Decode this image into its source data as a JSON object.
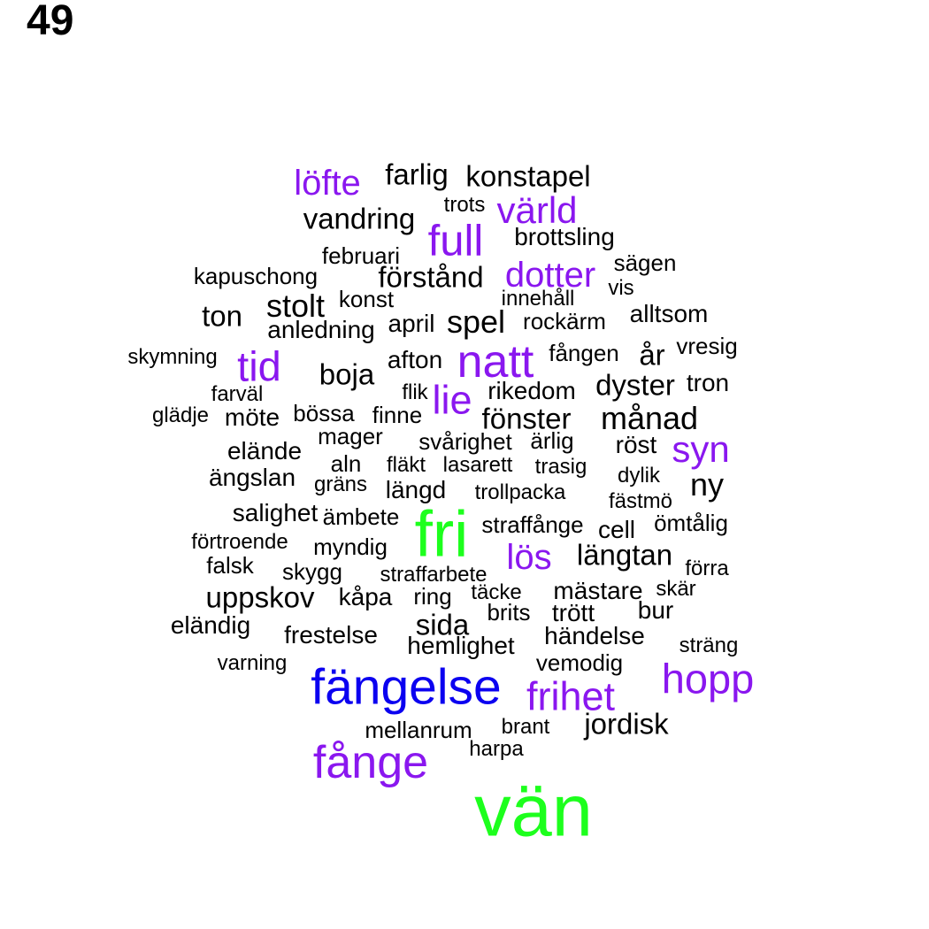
{
  "page_number": "49",
  "colors": {
    "default": "#000000",
    "purple": "#8a17ef",
    "blue": "#0b00f0",
    "green": "#1dff1d"
  },
  "words": [
    {
      "t": "löfte",
      "c": "purple"
    },
    {
      "t": "farlig",
      "c": "default"
    },
    {
      "t": "konstapel",
      "c": "default"
    },
    {
      "t": "trots",
      "c": "default"
    },
    {
      "t": "värld",
      "c": "purple"
    },
    {
      "t": "vandring",
      "c": "default"
    },
    {
      "t": "full",
      "c": "purple"
    },
    {
      "t": "brottsling",
      "c": "default"
    },
    {
      "t": "februari",
      "c": "default"
    },
    {
      "t": "sägen",
      "c": "default"
    },
    {
      "t": "kapuschong",
      "c": "default"
    },
    {
      "t": "förstånd",
      "c": "default"
    },
    {
      "t": "dotter",
      "c": "purple"
    },
    {
      "t": "vis",
      "c": "default"
    },
    {
      "t": "konst",
      "c": "default"
    },
    {
      "t": "innehåll",
      "c": "default"
    },
    {
      "t": "stolt",
      "c": "default"
    },
    {
      "t": "ton",
      "c": "default"
    },
    {
      "t": "alltsom",
      "c": "default"
    },
    {
      "t": "april",
      "c": "default"
    },
    {
      "t": "spel",
      "c": "default"
    },
    {
      "t": "rockärm",
      "c": "default"
    },
    {
      "t": "anledning",
      "c": "default"
    },
    {
      "t": "vresig",
      "c": "default"
    },
    {
      "t": "skymning",
      "c": "default"
    },
    {
      "t": "tid",
      "c": "purple"
    },
    {
      "t": "afton",
      "c": "default"
    },
    {
      "t": "natt",
      "c": "purple"
    },
    {
      "t": "fången",
      "c": "default"
    },
    {
      "t": "år",
      "c": "default"
    },
    {
      "t": "boja",
      "c": "default"
    },
    {
      "t": "dyster",
      "c": "default"
    },
    {
      "t": "tron",
      "c": "default"
    },
    {
      "t": "farväl",
      "c": "default"
    },
    {
      "t": "flik",
      "c": "default"
    },
    {
      "t": "rikedom",
      "c": "default"
    },
    {
      "t": "lie",
      "c": "purple"
    },
    {
      "t": "glädje",
      "c": "default"
    },
    {
      "t": "möte",
      "c": "default"
    },
    {
      "t": "bössa",
      "c": "default"
    },
    {
      "t": "finne",
      "c": "default"
    },
    {
      "t": "fönster",
      "c": "default"
    },
    {
      "t": "månad",
      "c": "default"
    },
    {
      "t": "mager",
      "c": "default"
    },
    {
      "t": "svårighet",
      "c": "default"
    },
    {
      "t": "ärlig",
      "c": "default"
    },
    {
      "t": "elände",
      "c": "default"
    },
    {
      "t": "röst",
      "c": "default"
    },
    {
      "t": "syn",
      "c": "purple"
    },
    {
      "t": "aln",
      "c": "default"
    },
    {
      "t": "fläkt",
      "c": "default"
    },
    {
      "t": "lasarett",
      "c": "default"
    },
    {
      "t": "trasig",
      "c": "default"
    },
    {
      "t": "ängslan",
      "c": "default"
    },
    {
      "t": "dylik",
      "c": "default"
    },
    {
      "t": "ny",
      "c": "default"
    },
    {
      "t": "gräns",
      "c": "default"
    },
    {
      "t": "längd",
      "c": "default"
    },
    {
      "t": "trollpacka",
      "c": "default"
    },
    {
      "t": "fästmö",
      "c": "default"
    },
    {
      "t": "salighet",
      "c": "default"
    },
    {
      "t": "ämbete",
      "c": "default"
    },
    {
      "t": "fri",
      "c": "green"
    },
    {
      "t": "straffånge",
      "c": "default"
    },
    {
      "t": "cell",
      "c": "default"
    },
    {
      "t": "ömtålig",
      "c": "default"
    },
    {
      "t": "förtroende",
      "c": "default"
    },
    {
      "t": "myndig",
      "c": "default"
    },
    {
      "t": "längtan",
      "c": "default"
    },
    {
      "t": "lös",
      "c": "purple"
    },
    {
      "t": "falsk",
      "c": "default"
    },
    {
      "t": "skygg",
      "c": "default"
    },
    {
      "t": "straffarbete",
      "c": "default"
    },
    {
      "t": "förra",
      "c": "default"
    },
    {
      "t": "uppskov",
      "c": "default"
    },
    {
      "t": "kåpa",
      "c": "default"
    },
    {
      "t": "ring",
      "c": "default"
    },
    {
      "t": "täcke",
      "c": "default"
    },
    {
      "t": "mästare",
      "c": "default"
    },
    {
      "t": "skär",
      "c": "default"
    },
    {
      "t": "brits",
      "c": "default"
    },
    {
      "t": "trött",
      "c": "default"
    },
    {
      "t": "bur",
      "c": "default"
    },
    {
      "t": "eländig",
      "c": "default"
    },
    {
      "t": "sida",
      "c": "default"
    },
    {
      "t": "frestelse",
      "c": "default"
    },
    {
      "t": "händelse",
      "c": "default"
    },
    {
      "t": "hemlighet",
      "c": "default"
    },
    {
      "t": "sträng",
      "c": "default"
    },
    {
      "t": "varning",
      "c": "default"
    },
    {
      "t": "vemodig",
      "c": "default"
    },
    {
      "t": "fängelse",
      "c": "blue"
    },
    {
      "t": "hopp",
      "c": "purple"
    },
    {
      "t": "frihet",
      "c": "purple"
    },
    {
      "t": "jordisk",
      "c": "default"
    },
    {
      "t": "mellanrum",
      "c": "default"
    },
    {
      "t": "brant",
      "c": "default"
    },
    {
      "t": "harpa",
      "c": "default"
    },
    {
      "t": "fånge",
      "c": "purple"
    },
    {
      "t": "vän",
      "c": "green"
    }
  ]
}
